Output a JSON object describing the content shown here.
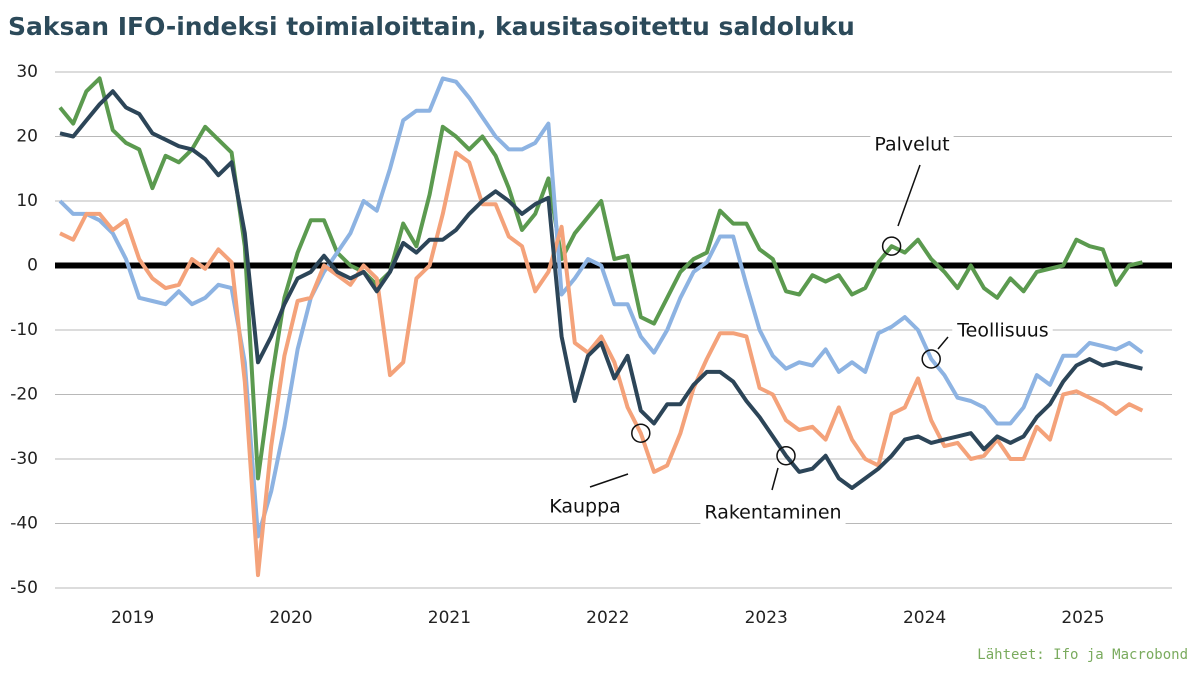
{
  "chart_data": {
    "type": "line",
    "title": "Saksan IFO-indeksi toimialoittain, kausitasoitettu saldoluku",
    "source": "Lähteet: Ifo ja Macrobond",
    "categories": [
      null,
      null,
      null,
      null,
      null,
      null,
      "2019",
      null,
      null,
      null,
      null,
      null,
      null,
      null,
      null,
      null,
      null,
      null,
      "2020",
      null,
      null,
      null,
      null,
      null,
      null,
      null,
      null,
      null,
      null,
      null,
      "2021",
      null,
      null,
      null,
      null,
      null,
      null,
      null,
      null,
      null,
      null,
      null,
      "2022",
      null,
      null,
      null,
      null,
      null,
      null,
      null,
      null,
      null,
      null,
      null,
      "2023",
      null,
      null,
      null,
      null,
      null,
      null,
      null,
      null,
      null,
      null,
      null,
      "2024",
      null,
      null,
      null,
      null,
      null,
      null,
      null,
      null,
      null,
      null,
      null,
      "2025",
      null,
      null,
      null,
      null
    ],
    "ylim": [
      -50,
      30
    ],
    "yticks": [
      30,
      20,
      10,
      0,
      -10,
      -20,
      -30,
      -40,
      -50
    ],
    "grid": true,
    "series": [
      {
        "name": "Palvelut",
        "color": "#5b9a4f",
        "values": [
          24.5,
          22,
          27,
          29,
          21,
          19,
          18,
          12,
          17,
          16,
          18,
          21.5,
          19.5,
          17.5,
          3,
          -33,
          -18,
          -5,
          2,
          7,
          7,
          2,
          0,
          -1,
          -3,
          -1,
          6.5,
          3,
          11,
          21.5,
          20,
          18,
          20,
          17,
          12,
          5.5,
          8,
          13.5,
          1,
          5,
          7.5,
          10,
          1,
          1.5,
          -8,
          -9,
          -5,
          -1,
          1,
          2,
          8.5,
          6.5,
          6.5,
          2.5,
          1,
          -4,
          -4.5,
          -1.5,
          -2.5,
          -1.5,
          -4.5,
          -3.5,
          0.5,
          3,
          2,
          4,
          1,
          -1,
          -3.5,
          0,
          -3.5,
          -5,
          -2,
          -4,
          -1,
          -0.5,
          0,
          4,
          3,
          2.5,
          -3,
          0,
          0.5
        ]
      },
      {
        "name": "Teollisuus",
        "color": "#8db3e2",
        "values": [
          10,
          8,
          8,
          7,
          5,
          1,
          -5,
          -5.5,
          -6,
          -4,
          -6,
          -5,
          -3,
          -3.5,
          -15,
          -42,
          -35,
          -25,
          -13,
          -5,
          -1,
          2,
          5,
          10,
          8.5,
          15,
          22.5,
          24,
          24,
          29,
          28.5,
          26,
          23,
          20,
          18,
          18,
          19,
          22,
          -4.5,
          -2,
          1,
          0,
          -6,
          -6,
          -11,
          -13.5,
          -10,
          -5,
          -1,
          0.5,
          4.5,
          4.5,
          -3,
          -10,
          -14,
          -16,
          -15,
          -15.5,
          -13,
          -16.5,
          -15,
          -16.5,
          -10.5,
          -9.5,
          -8,
          -10,
          -14.5,
          -17,
          -20.5,
          -21,
          -22,
          -24.5,
          -24.5,
          -22,
          -17,
          -18.5,
          -14,
          -14,
          -12,
          -12.5,
          -13,
          -12,
          -13.5
        ]
      },
      {
        "name": "Kauppa",
        "color": "#f4a27a",
        "values": [
          5,
          4,
          8,
          8,
          5.5,
          7,
          1,
          -2,
          -3.5,
          -3,
          1,
          -0.5,
          2.5,
          0.5,
          -18,
          -48,
          -28,
          -14,
          -5.5,
          -5,
          0,
          -1.5,
          -3,
          0,
          -2,
          -17,
          -15,
          -2,
          0,
          8,
          17.5,
          16,
          9.5,
          9.5,
          4.5,
          3,
          -4,
          -1,
          6,
          -12,
          -13.5,
          -11,
          -15,
          -22,
          -26,
          -32,
          -31,
          -26,
          -19,
          -14.5,
          -10.5,
          -10.5,
          -11,
          -19,
          -20,
          -24,
          -25.5,
          -25,
          -27,
          -22,
          -27,
          -30,
          -31,
          -23,
          -22,
          -17.5,
          -24,
          -28,
          -27.5,
          -30,
          -29.5,
          -27,
          -30,
          -30,
          -25,
          -27,
          -20,
          -19.5,
          -20.5,
          -21.5,
          -23,
          -21.5,
          -22.5
        ]
      },
      {
        "name": "Rakentaminen",
        "color": "#2c4558",
        "values": [
          20.5,
          20,
          22.5,
          25,
          27,
          24.5,
          23.5,
          20.5,
          19.5,
          18.5,
          18,
          16.5,
          14,
          16,
          5,
          -15,
          -11,
          -6,
          -2,
          -1,
          1.5,
          -1,
          -2,
          -1,
          -4,
          -1,
          3.5,
          2,
          4,
          4,
          5.5,
          8,
          10,
          11.5,
          10,
          8,
          9.5,
          10.5,
          -11,
          -21,
          -14,
          -12,
          -17.5,
          -14,
          -22.5,
          -24.5,
          -21.5,
          -21.5,
          -18.5,
          -16.5,
          -16.5,
          -18,
          -21,
          -23.5,
          -26.5,
          -29.5,
          -32,
          -31.5,
          -29.5,
          -33,
          -34.5,
          -33,
          -31.5,
          -29.5,
          -27,
          -26.5,
          -27.5,
          -27,
          -26.5,
          -26,
          -28.5,
          -26.5,
          -27.5,
          -26.5,
          -23.5,
          -21.5,
          -18,
          -15.5,
          -14.5,
          -15.5,
          -15,
          -15.5,
          -16
        ]
      }
    ]
  }
}
